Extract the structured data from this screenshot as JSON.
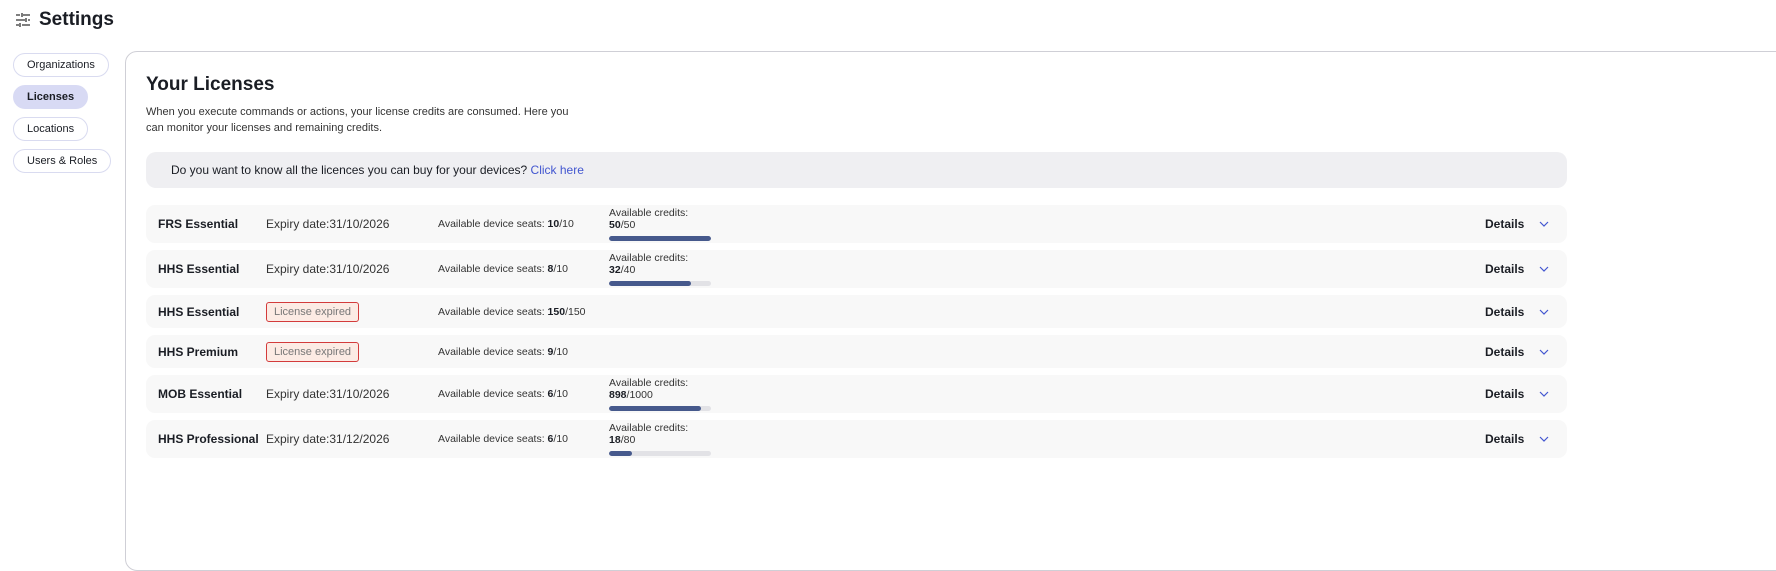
{
  "header": {
    "title": "Settings",
    "icon": "sliders-icon"
  },
  "sidebar": {
    "items": [
      {
        "label": "Organizations",
        "active": false
      },
      {
        "label": "Licenses",
        "active": true
      },
      {
        "label": "Locations",
        "active": false
      },
      {
        "label": "Users & Roles",
        "active": false
      }
    ]
  },
  "main": {
    "title": "Your Licenses",
    "description": "When you execute commands or actions, your license credits are consumed. Here you can monitor your licenses and remaining credits.",
    "banner": {
      "text": "Do you want to know all the licences you can buy for your devices? ",
      "link": "Click here"
    },
    "seats_label": "Available device seats: ",
    "credits_label": "Available credits: ",
    "details_label": "Details",
    "colors": {
      "bar_fill": "#46598c",
      "bar_track": "#e2e2e6",
      "expired_border": "#d33b3b",
      "link": "#4256d0"
    },
    "licenses": [
      {
        "name": "FRS Essential",
        "expiry": "Expiry date:31/10/2026",
        "seats_avail": "10",
        "seats_total": "10",
        "credits_avail": "50",
        "credits_total": "50"
      },
      {
        "name": "HHS Essential",
        "expiry": "Expiry date:31/10/2026",
        "seats_avail": "8",
        "seats_total": "10",
        "credits_avail": "32",
        "credits_total": "40"
      },
      {
        "name": "HHS Essential",
        "status": "License expired",
        "seats_avail": "150",
        "seats_total": "150"
      },
      {
        "name": "HHS Premium",
        "status": "License expired",
        "seats_avail": "9",
        "seats_total": "10"
      },
      {
        "name": "MOB Essential",
        "expiry": "Expiry date:31/10/2026",
        "seats_avail": "6",
        "seats_total": "10",
        "credits_avail": "898",
        "credits_total": "1000"
      },
      {
        "name": "HHS Professional",
        "expiry": "Expiry date:31/12/2026",
        "seats_avail": "6",
        "seats_total": "10",
        "credits_avail": "18",
        "credits_total": "80"
      }
    ]
  }
}
